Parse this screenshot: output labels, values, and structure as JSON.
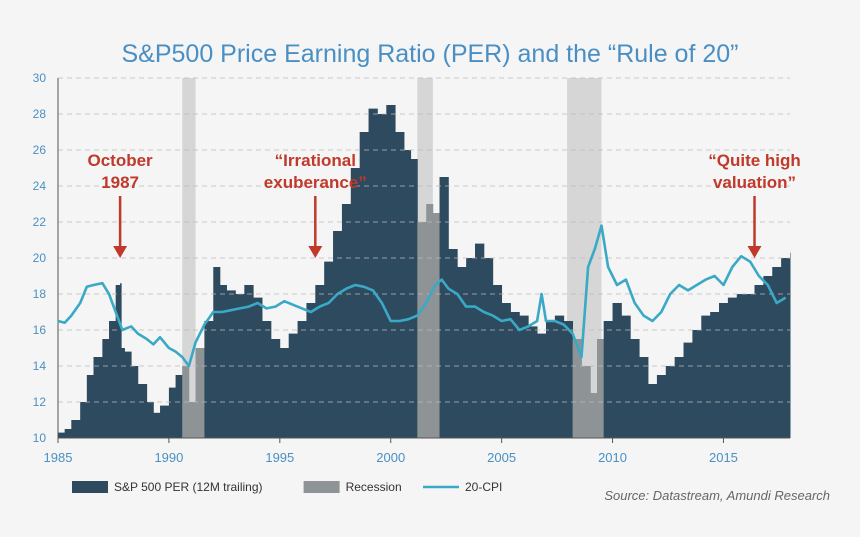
{
  "chart_data": {
    "type": "bar",
    "title": "S&P500 Price Earning Ratio (PER) and the “Rule of 20”",
    "xlabel": "",
    "ylabel": "",
    "xlim": [
      1985,
      2018
    ],
    "ylim": [
      10,
      30
    ],
    "y_ticks": [
      10,
      12,
      14,
      16,
      18,
      20,
      22,
      24,
      26,
      28,
      30
    ],
    "x_ticks": [
      1985,
      1990,
      1995,
      2000,
      2005,
      2010,
      2015
    ],
    "x_tick_labels": [
      "1985",
      "1990",
      "1995",
      "2000",
      "2005",
      "2010",
      "2015"
    ],
    "y_tick_labels": [
      "10",
      "12",
      "14",
      "16",
      "18",
      "20",
      "22",
      "24",
      "26",
      "28",
      "30"
    ],
    "legend": {
      "position": "bottom-left",
      "items": [
        {
          "label": "S&P 500 PER (12M trailing)",
          "color": "#2e4a5f",
          "kind": "bar"
        },
        {
          "label": "Recession",
          "color": "#8e9396",
          "kind": "bar"
        },
        {
          "label": "20-CPI",
          "color": "#3aa9c6",
          "kind": "line"
        }
      ]
    },
    "recessions": [
      [
        1990.6,
        1991.2
      ],
      [
        2001.2,
        2001.9
      ],
      [
        2007.95,
        2009.5
      ]
    ],
    "series": [
      {
        "name": "S&P 500 PER (12M trailing)",
        "kind": "bar",
        "color": "#2e4a5f",
        "points": [
          [
            1985.0,
            10.3
          ],
          [
            1985.3,
            10.5
          ],
          [
            1985.6,
            11.0
          ],
          [
            1986.0,
            12.0
          ],
          [
            1986.3,
            13.5
          ],
          [
            1986.6,
            14.5
          ],
          [
            1987.0,
            15.5
          ],
          [
            1987.3,
            16.5
          ],
          [
            1987.6,
            18.5
          ],
          [
            1987.8,
            18.6
          ],
          [
            1987.85,
            15.0
          ],
          [
            1988.0,
            14.8
          ],
          [
            1988.3,
            14.0
          ],
          [
            1988.6,
            13.0
          ],
          [
            1989.0,
            12.0
          ],
          [
            1989.3,
            11.4
          ],
          [
            1989.6,
            11.8
          ],
          [
            1990.0,
            12.8
          ],
          [
            1990.3,
            13.5
          ],
          [
            1990.6,
            14.0
          ],
          [
            1990.9,
            12.0
          ],
          [
            1991.2,
            15.0
          ],
          [
            1991.6,
            16.5
          ],
          [
            1992.0,
            19.5
          ],
          [
            1992.3,
            18.5
          ],
          [
            1992.6,
            18.2
          ],
          [
            1993.0,
            18.0
          ],
          [
            1993.4,
            18.5
          ],
          [
            1993.8,
            17.8
          ],
          [
            1994.2,
            16.5
          ],
          [
            1994.6,
            15.5
          ],
          [
            1995.0,
            15.0
          ],
          [
            1995.4,
            15.8
          ],
          [
            1995.8,
            16.5
          ],
          [
            1996.2,
            17.5
          ],
          [
            1996.6,
            18.5
          ],
          [
            1997.0,
            19.8
          ],
          [
            1997.4,
            21.5
          ],
          [
            1997.8,
            23.0
          ],
          [
            1998.2,
            25.0
          ],
          [
            1998.6,
            27.0
          ],
          [
            1999.0,
            28.3
          ],
          [
            1999.4,
            28.0
          ],
          [
            1999.8,
            28.5
          ],
          [
            2000.2,
            27.0
          ],
          [
            2000.6,
            26.0
          ],
          [
            2000.9,
            25.5
          ],
          [
            2001.2,
            22.0
          ],
          [
            2001.6,
            23.0
          ],
          [
            2001.9,
            22.5
          ],
          [
            2002.2,
            24.5
          ],
          [
            2002.6,
            20.5
          ],
          [
            2003.0,
            19.5
          ],
          [
            2003.4,
            20.0
          ],
          [
            2003.8,
            20.8
          ],
          [
            2004.2,
            20.0
          ],
          [
            2004.6,
            18.5
          ],
          [
            2005.0,
            17.5
          ],
          [
            2005.4,
            17.0
          ],
          [
            2005.8,
            16.8
          ],
          [
            2006.2,
            16.2
          ],
          [
            2006.6,
            15.8
          ],
          [
            2007.0,
            16.5
          ],
          [
            2007.4,
            16.8
          ],
          [
            2007.8,
            16.5
          ],
          [
            2008.2,
            15.5
          ],
          [
            2008.6,
            14.0
          ],
          [
            2009.0,
            12.5
          ],
          [
            2009.3,
            15.5
          ],
          [
            2009.6,
            16.5
          ],
          [
            2010.0,
            17.5
          ],
          [
            2010.4,
            16.8
          ],
          [
            2010.8,
            15.5
          ],
          [
            2011.2,
            14.5
          ],
          [
            2011.6,
            13.0
          ],
          [
            2012.0,
            13.5
          ],
          [
            2012.4,
            14.0
          ],
          [
            2012.8,
            14.5
          ],
          [
            2013.2,
            15.3
          ],
          [
            2013.6,
            16.0
          ],
          [
            2014.0,
            16.8
          ],
          [
            2014.4,
            17.0
          ],
          [
            2014.8,
            17.5
          ],
          [
            2015.2,
            17.8
          ],
          [
            2015.6,
            18.0
          ],
          [
            2016.0,
            18.0
          ],
          [
            2016.4,
            18.5
          ],
          [
            2016.8,
            19.0
          ],
          [
            2017.2,
            19.5
          ],
          [
            2017.6,
            20.0
          ],
          [
            2018.0,
            20.3
          ]
        ]
      },
      {
        "name": "20-CPI",
        "kind": "line",
        "color": "#3aa9c6",
        "points": [
          [
            1985.0,
            16.5
          ],
          [
            1985.3,
            16.4
          ],
          [
            1985.6,
            16.8
          ],
          [
            1986.0,
            17.5
          ],
          [
            1986.3,
            18.4
          ],
          [
            1986.6,
            18.5
          ],
          [
            1987.0,
            18.6
          ],
          [
            1987.3,
            18.0
          ],
          [
            1987.6,
            17.0
          ],
          [
            1987.9,
            16.0
          ],
          [
            1988.3,
            16.2
          ],
          [
            1988.6,
            15.8
          ],
          [
            1989.0,
            15.5
          ],
          [
            1989.3,
            15.2
          ],
          [
            1989.6,
            15.6
          ],
          [
            1990.0,
            15.0
          ],
          [
            1990.3,
            14.8
          ],
          [
            1990.6,
            14.5
          ],
          [
            1990.9,
            14.0
          ],
          [
            1991.2,
            15.3
          ],
          [
            1991.6,
            16.3
          ],
          [
            1992.0,
            17.0
          ],
          [
            1992.4,
            17.0
          ],
          [
            1992.8,
            17.1
          ],
          [
            1993.2,
            17.2
          ],
          [
            1993.6,
            17.3
          ],
          [
            1994.0,
            17.5
          ],
          [
            1994.4,
            17.2
          ],
          [
            1994.8,
            17.3
          ],
          [
            1995.2,
            17.6
          ],
          [
            1995.6,
            17.4
          ],
          [
            1996.0,
            17.2
          ],
          [
            1996.4,
            17.0
          ],
          [
            1996.8,
            17.3
          ],
          [
            1997.2,
            17.5
          ],
          [
            1997.6,
            18.0
          ],
          [
            1998.0,
            18.3
          ],
          [
            1998.4,
            18.5
          ],
          [
            1998.8,
            18.4
          ],
          [
            1999.2,
            18.2
          ],
          [
            1999.6,
            17.5
          ],
          [
            2000.0,
            16.5
          ],
          [
            2000.4,
            16.5
          ],
          [
            2000.8,
            16.6
          ],
          [
            2001.2,
            16.8
          ],
          [
            2001.6,
            17.5
          ],
          [
            2002.0,
            18.5
          ],
          [
            2002.3,
            18.8
          ],
          [
            2002.6,
            18.3
          ],
          [
            2003.0,
            18.0
          ],
          [
            2003.4,
            17.3
          ],
          [
            2003.8,
            17.3
          ],
          [
            2004.2,
            17.0
          ],
          [
            2004.6,
            16.8
          ],
          [
            2005.0,
            16.5
          ],
          [
            2005.4,
            16.6
          ],
          [
            2005.8,
            16.0
          ],
          [
            2006.2,
            16.2
          ],
          [
            2006.6,
            16.5
          ],
          [
            2006.8,
            18.0
          ],
          [
            2007.0,
            16.5
          ],
          [
            2007.4,
            16.5
          ],
          [
            2007.8,
            16.3
          ],
          [
            2008.2,
            15.8
          ],
          [
            2008.6,
            14.5
          ],
          [
            2008.9,
            19.5
          ],
          [
            2009.2,
            20.5
          ],
          [
            2009.5,
            21.8
          ],
          [
            2009.8,
            19.5
          ],
          [
            2010.2,
            18.5
          ],
          [
            2010.6,
            18.8
          ],
          [
            2011.0,
            17.5
          ],
          [
            2011.4,
            16.8
          ],
          [
            2011.8,
            16.5
          ],
          [
            2012.2,
            17.0
          ],
          [
            2012.6,
            18.0
          ],
          [
            2013.0,
            18.5
          ],
          [
            2013.4,
            18.2
          ],
          [
            2013.8,
            18.5
          ],
          [
            2014.2,
            18.8
          ],
          [
            2014.6,
            19.0
          ],
          [
            2015.0,
            18.5
          ],
          [
            2015.4,
            19.5
          ],
          [
            2015.8,
            20.1
          ],
          [
            2016.2,
            19.8
          ],
          [
            2016.6,
            19.0
          ],
          [
            2017.0,
            18.5
          ],
          [
            2017.4,
            17.5
          ],
          [
            2017.8,
            17.8
          ]
        ]
      }
    ],
    "annotations": [
      {
        "lines": [
          "October",
          "1987"
        ],
        "at": [
          1987.8,
          20.0
        ]
      },
      {
        "lines": [
          "“Irrational",
          "exuberance”"
        ],
        "at": [
          1996.6,
          20.0
        ]
      },
      {
        "lines": [
          "“Quite high",
          "valuation”"
        ],
        "at": [
          2016.4,
          20.0
        ]
      }
    ],
    "source": "Source: Datastream, Amundi Research",
    "colors": {
      "annotation": "#c0392b",
      "axis_text": "#4a90c4",
      "title": "#4a8fc4",
      "grid": "#bbbbbb"
    }
  }
}
